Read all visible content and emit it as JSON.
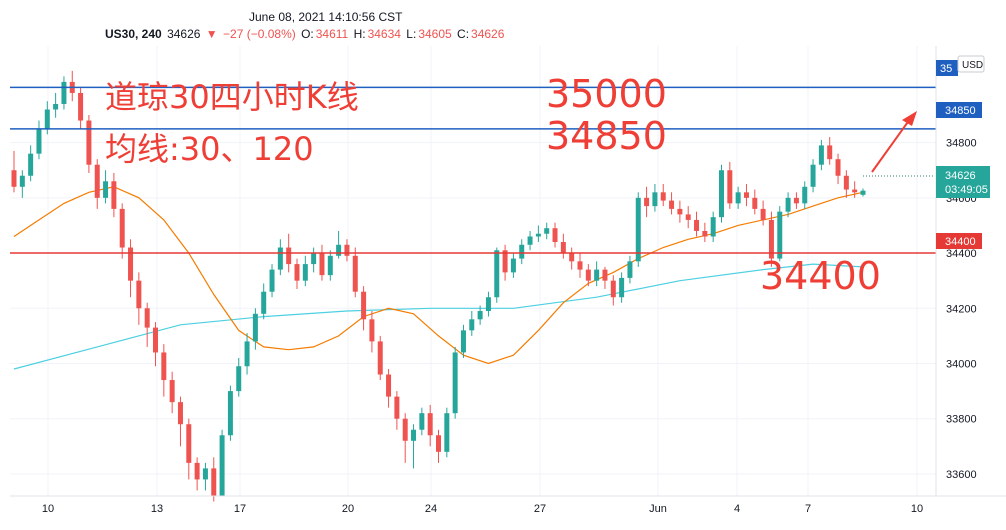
{
  "header": {
    "datetime": "June 08, 2021 14:10:56 CST",
    "symbol": "US30, 240",
    "last": "34626",
    "change": "−27 (−0.08%)",
    "open_label": "O:",
    "open": "34611",
    "high_label": "H:",
    "high": "34634",
    "low_label": "L:",
    "low": "34605",
    "close_label": "C:",
    "close": "34626"
  },
  "annotations": {
    "title_line1": "道琼30四小时K线",
    "title_line2": "均线:30、120",
    "level_35000": "35000",
    "level_34850": "34850",
    "level_34400": "34400"
  },
  "price_axis": {
    "currency_button": "USD",
    "marker_35000": "35",
    "marker_34850": "34850",
    "marker_34400": "34400",
    "marker_last": "34626",
    "marker_countdown": "03:49:05"
  },
  "colors": {
    "up": "#26a69a",
    "down": "#ef5350",
    "ma30": "#f57c00",
    "ma120": "#4dd0e1",
    "hline_blue": "#1e5fbf",
    "hline_red": "#e53935"
  },
  "chart_data": {
    "type": "candlestick",
    "y_ticks": [
      33600,
      33800,
      34000,
      34200,
      34400,
      34600,
      34800
    ],
    "ylim": [
      33520,
      35150
    ],
    "x_ticks": [
      "10",
      "13",
      "17",
      "20",
      "24",
      "27",
      "Jun",
      "4",
      "7",
      "10"
    ],
    "horizontal_lines": [
      35000,
      34850,
      34400
    ],
    "moving_averages": [
      "30",
      "120"
    ],
    "candles": [
      [
        34700,
        34640,
        34770,
        34620
      ],
      [
        34640,
        34680,
        34700,
        34600
      ],
      [
        34680,
        34760,
        34790,
        34660
      ],
      [
        34760,
        34850,
        34880,
        34740
      ],
      [
        34850,
        34920,
        34950,
        34830
      ],
      [
        34920,
        34940,
        34980,
        34890
      ],
      [
        34940,
        35020,
        35040,
        34920
      ],
      [
        35020,
        34980,
        35060,
        34950
      ],
      [
        34980,
        34880,
        35000,
        34850
      ],
      [
        34880,
        34720,
        34900,
        34690
      ],
      [
        34720,
        34600,
        34740,
        34560
      ],
      [
        34600,
        34660,
        34700,
        34580
      ],
      [
        34660,
        34560,
        34690,
        34530
      ],
      [
        34560,
        34420,
        34580,
        34380
      ],
      [
        34420,
        34300,
        34450,
        34240
      ],
      [
        34300,
        34200,
        34330,
        34140
      ],
      [
        34200,
        34130,
        34220,
        34060
      ],
      [
        34130,
        34040,
        34150,
        33990
      ],
      [
        34040,
        33940,
        34070,
        33880
      ],
      [
        33940,
        33860,
        33970,
        33820
      ],
      [
        33860,
        33780,
        33880,
        33700
      ],
      [
        33780,
        33640,
        33800,
        33580
      ],
      [
        33640,
        33580,
        33660,
        33540
      ],
      [
        33580,
        33620,
        33640,
        33540
      ],
      [
        33620,
        33520,
        33660,
        33500
      ],
      [
        33520,
        33740,
        33760,
        33520
      ],
      [
        33740,
        33900,
        33920,
        33720
      ],
      [
        33900,
        33990,
        34020,
        33880
      ],
      [
        33990,
        34080,
        34110,
        33960
      ],
      [
        34080,
        34180,
        34200,
        34050
      ],
      [
        34180,
        34260,
        34290,
        34160
      ],
      [
        34260,
        34340,
        34360,
        34240
      ],
      [
        34340,
        34420,
        34450,
        34320
      ],
      [
        34420,
        34360,
        34470,
        34330
      ],
      [
        34360,
        34300,
        34380,
        34270
      ],
      [
        34300,
        34360,
        34390,
        34280
      ],
      [
        34360,
        34400,
        34420,
        34330
      ],
      [
        34400,
        34320,
        34430,
        34300
      ],
      [
        34320,
        34390,
        34410,
        34300
      ],
      [
        34390,
        34430,
        34480,
        34380
      ],
      [
        34430,
        34390,
        34450,
        34370
      ],
      [
        34390,
        34260,
        34420,
        34240
      ],
      [
        34260,
        34160,
        34280,
        34120
      ],
      [
        34160,
        34080,
        34190,
        34040
      ],
      [
        34080,
        33960,
        34100,
        33940
      ],
      [
        33960,
        33880,
        33980,
        33840
      ],
      [
        33880,
        33800,
        33900,
        33760
      ],
      [
        33800,
        33720,
        33820,
        33640
      ],
      [
        33720,
        33760,
        33780,
        33620
      ],
      [
        33760,
        33820,
        33840,
        33740
      ],
      [
        33820,
        33740,
        33850,
        33700
      ],
      [
        33740,
        33680,
        33760,
        33640
      ],
      [
        33680,
        33820,
        33840,
        33660
      ],
      [
        33820,
        34040,
        34060,
        33800
      ],
      [
        34040,
        34120,
        34140,
        34020
      ],
      [
        34120,
        34160,
        34190,
        34100
      ],
      [
        34160,
        34190,
        34210,
        34140
      ],
      [
        34190,
        34240,
        34260,
        34170
      ],
      [
        34240,
        34410,
        34420,
        34220
      ],
      [
        34410,
        34330,
        34430,
        34300
      ],
      [
        34330,
        34380,
        34400,
        34310
      ],
      [
        34380,
        34430,
        34450,
        34360
      ],
      [
        34430,
        34460,
        34480,
        34410
      ],
      [
        34460,
        34470,
        34500,
        34440
      ],
      [
        34470,
        34490,
        34510,
        34450
      ],
      [
        34490,
        34440,
        34510,
        34420
      ],
      [
        34440,
        34400,
        34470,
        34380
      ],
      [
        34400,
        34370,
        34420,
        34340
      ],
      [
        34370,
        34340,
        34400,
        34310
      ],
      [
        34340,
        34300,
        34360,
        34280
      ],
      [
        34300,
        34340,
        34370,
        34280
      ],
      [
        34340,
        34300,
        34350,
        34270
      ],
      [
        34300,
        34240,
        34320,
        34210
      ],
      [
        34240,
        34310,
        34330,
        34220
      ],
      [
        34310,
        34370,
        34390,
        34290
      ],
      [
        34370,
        34600,
        34620,
        34350
      ],
      [
        34600,
        34570,
        34640,
        34530
      ],
      [
        34570,
        34620,
        34650,
        34550
      ],
      [
        34620,
        34590,
        34650,
        34570
      ],
      [
        34590,
        34560,
        34620,
        34540
      ],
      [
        34560,
        34540,
        34590,
        34510
      ],
      [
        34540,
        34520,
        34570,
        34490
      ],
      [
        34520,
        34480,
        34550,
        34460
      ],
      [
        34480,
        34460,
        34510,
        34440
      ],
      [
        34460,
        34530,
        34550,
        34440
      ],
      [
        34530,
        34700,
        34720,
        34510
      ],
      [
        34700,
        34580,
        34730,
        34560
      ],
      [
        34580,
        34620,
        34640,
        34560
      ],
      [
        34620,
        34600,
        34650,
        34570
      ],
      [
        34600,
        34560,
        34630,
        34540
      ],
      [
        34560,
        34520,
        34590,
        34500
      ],
      [
        34520,
        34380,
        34550,
        34350
      ],
      [
        34380,
        34550,
        34570,
        34370
      ],
      [
        34550,
        34600,
        34620,
        34530
      ],
      [
        34600,
        34580,
        34620,
        34560
      ],
      [
        34580,
        34640,
        34660,
        34560
      ],
      [
        34640,
        34720,
        34740,
        34620
      ],
      [
        34720,
        34790,
        34810,
        34700
      ],
      [
        34790,
        34740,
        34820,
        34720
      ],
      [
        34740,
        34680,
        34760,
        34650
      ],
      [
        34680,
        34630,
        34700,
        34600
      ],
      [
        34630,
        34620,
        34660,
        34600
      ],
      [
        34611,
        34626,
        34634,
        34605
      ]
    ],
    "ma30": [
      [
        0,
        34460
      ],
      [
        3,
        34520
      ],
      [
        6,
        34580
      ],
      [
        9,
        34620
      ],
      [
        12,
        34640
      ],
      [
        15,
        34600
      ],
      [
        18,
        34520
      ],
      [
        21,
        34400
      ],
      [
        24,
        34250
      ],
      [
        27,
        34120
      ],
      [
        30,
        34060
      ],
      [
        33,
        34050
      ],
      [
        36,
        34060
      ],
      [
        39,
        34100
      ],
      [
        42,
        34170
      ],
      [
        45,
        34200
      ],
      [
        48,
        34180
      ],
      [
        51,
        34100
      ],
      [
        54,
        34030
      ],
      [
        57,
        34000
      ],
      [
        60,
        34030
      ],
      [
        63,
        34120
      ],
      [
        66,
        34220
      ],
      [
        69,
        34290
      ],
      [
        72,
        34330
      ],
      [
        75,
        34380
      ],
      [
        78,
        34420
      ],
      [
        81,
        34450
      ],
      [
        84,
        34470
      ],
      [
        87,
        34500
      ],
      [
        90,
        34520
      ],
      [
        93,
        34540
      ],
      [
        96,
        34570
      ],
      [
        99,
        34600
      ],
      [
        102,
        34620
      ]
    ],
    "ma120": [
      [
        0,
        33980
      ],
      [
        10,
        34060
      ],
      [
        20,
        34140
      ],
      [
        30,
        34170
      ],
      [
        40,
        34190
      ],
      [
        50,
        34200
      ],
      [
        60,
        34200
      ],
      [
        70,
        34240
      ],
      [
        80,
        34300
      ],
      [
        90,
        34340
      ],
      [
        96,
        34360
      ],
      [
        102,
        34350
      ]
    ]
  }
}
